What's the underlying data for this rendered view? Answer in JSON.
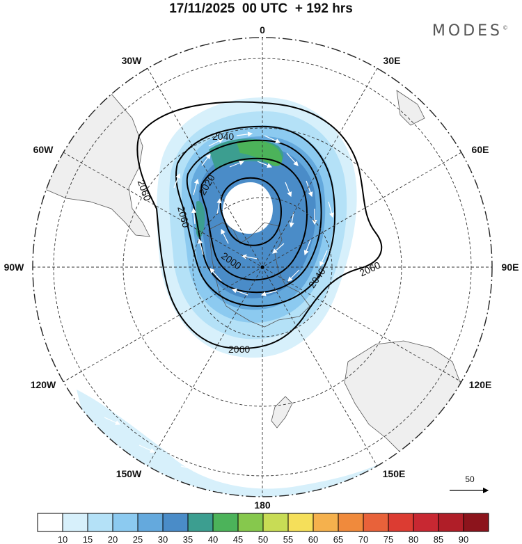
{
  "title": "17/11/2025  00 UTC  + 192 hrs",
  "brand": {
    "name": "MODES",
    "mark": "©"
  },
  "map": {
    "projection": "polar-stereographic-south",
    "longitude_labels": [
      {
        "text": "0",
        "lon": 0
      },
      {
        "text": "30E",
        "lon": 30
      },
      {
        "text": "60E",
        "lon": 60
      },
      {
        "text": "90E",
        "lon": 90
      },
      {
        "text": "120E",
        "lon": 120
      },
      {
        "text": "150E",
        "lon": 150
      },
      {
        "text": "180",
        "lon": 180
      },
      {
        "text": "150W",
        "lon": -150
      },
      {
        "text": "120W",
        "lon": -120
      },
      {
        "text": "90W",
        "lon": -90
      },
      {
        "text": "60W",
        "lon": -60
      },
      {
        "text": "30W",
        "lon": -30
      }
    ],
    "contour_labels": [
      "2040",
      "2020",
      "2060",
      "2060",
      "2000",
      "2040",
      "2060",
      "2060"
    ],
    "wind_reference": {
      "value": "50"
    }
  },
  "colorbar": {
    "ticks": [
      "10",
      "15",
      "20",
      "25",
      "30",
      "35",
      "40",
      "45",
      "50",
      "55",
      "60",
      "65",
      "70",
      "75",
      "80",
      "85",
      "90"
    ],
    "colors": [
      "#ffffff",
      "#d7f0fb",
      "#b4e1f7",
      "#8ccaf0",
      "#64a9dd",
      "#4a8cc8",
      "#3c9e90",
      "#4cb35a",
      "#86c84d",
      "#c8dc55",
      "#f5df5a",
      "#f5b14d",
      "#f08a3c",
      "#e8623a",
      "#dc3c32",
      "#c82832",
      "#b01e28",
      "#8c141c"
    ]
  },
  "colors": {
    "land": "#efefef",
    "coast": "#555555",
    "grid": "#333333",
    "contour": "#000000",
    "vector": "#ffffff"
  }
}
